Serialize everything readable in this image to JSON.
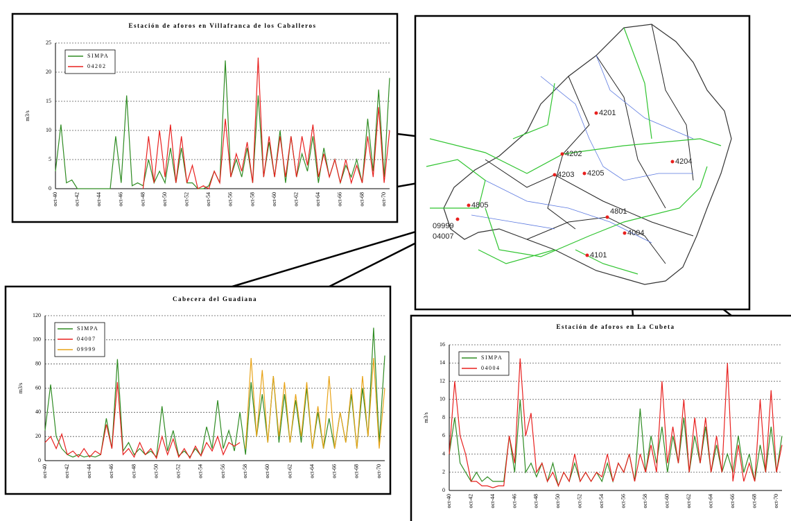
{
  "chart_data": [
    {
      "type": "line",
      "title": "Estación de aforos en Villafranca de los Caballeros",
      "y_label": "m3/s",
      "categories": [
        "oct-40",
        null,
        null,
        null,
        "oct-42",
        null,
        null,
        null,
        "oct-44",
        null,
        null,
        null,
        "oct-46",
        null,
        null,
        null,
        "oct-48",
        null,
        null,
        null,
        "oct-50",
        null,
        null,
        null,
        "oct-52",
        null,
        null,
        null,
        "oct-54",
        null,
        null,
        null,
        "oct-56",
        null,
        null,
        null,
        "oct-58",
        null,
        null,
        null,
        "oct-60",
        null,
        null,
        null,
        "oct-62",
        null,
        null,
        null,
        "oct-64",
        null,
        null,
        null,
        "oct-66",
        null,
        null,
        null,
        "oct-68",
        null,
        null,
        null,
        "oct-70",
        null
      ],
      "ylim": [
        0,
        25
      ],
      "yticks": [
        0,
        5,
        10,
        15,
        20,
        25
      ],
      "grid": true,
      "series": [
        {
          "name": "SIMPA",
          "color": "#2e8b22",
          "values": [
            3,
            11,
            1,
            1.5,
            0,
            0,
            0,
            0,
            0,
            0,
            0,
            9,
            1,
            16,
            0.5,
            1,
            0.5,
            5,
            1,
            3,
            1,
            7,
            1,
            7,
            1,
            1,
            0,
            0,
            0.5,
            3,
            1,
            22,
            2,
            5,
            2,
            7,
            1,
            16,
            2,
            8,
            2,
            10,
            1,
            9,
            2,
            6,
            3,
            9,
            1,
            7,
            2,
            5,
            1,
            4,
            2,
            5,
            1,
            12,
            3,
            17,
            2,
            19
          ]
        },
        {
          "name": "04202",
          "color": "#e8201e",
          "values": [
            null,
            null,
            null,
            null,
            null,
            null,
            null,
            null,
            null,
            null,
            null,
            null,
            null,
            null,
            null,
            null,
            0,
            9,
            1,
            10,
            2,
            11,
            1,
            9,
            1,
            4,
            0,
            0.5,
            0,
            3,
            1,
            12,
            2,
            6,
            3,
            8,
            1,
            22.5,
            2,
            9,
            2,
            9,
            2,
            9,
            2,
            9,
            4,
            11,
            2,
            6,
            2,
            5,
            1,
            5,
            1,
            4,
            1,
            9,
            2,
            14,
            1,
            10
          ]
        }
      ]
    },
    {
      "type": "line",
      "title": "Cabecera del Guadiana",
      "y_label": "m3/s",
      "categories": [
        "oct-40",
        null,
        null,
        null,
        "oct-42",
        null,
        null,
        null,
        "oct-44",
        null,
        null,
        null,
        "oct-46",
        null,
        null,
        null,
        "oct-48",
        null,
        null,
        null,
        "oct-50",
        null,
        null,
        null,
        "oct-52",
        null,
        null,
        null,
        "oct-54",
        null,
        null,
        null,
        "oct-56",
        null,
        null,
        null,
        "oct-58",
        null,
        null,
        null,
        "oct-60",
        null,
        null,
        null,
        "oct-62",
        null,
        null,
        null,
        "oct-64",
        null,
        null,
        null,
        "oct-66",
        null,
        null,
        null,
        "oct-68",
        null,
        null,
        null,
        "oct-70",
        null
      ],
      "ylim": [
        0,
        120
      ],
      "yticks": [
        0,
        20,
        40,
        60,
        80,
        100,
        120
      ],
      "grid": true,
      "series": [
        {
          "name": "SIMPA",
          "color": "#2e8b22",
          "values": [
            25,
            63,
            20,
            10,
            5,
            3,
            5,
            3,
            4,
            3,
            5,
            35,
            10,
            84,
            8,
            15,
            5,
            10,
            5,
            8,
            3,
            45,
            8,
            25,
            4,
            8,
            3,
            10,
            4,
            28,
            10,
            50,
            10,
            25,
            8,
            40,
            5,
            65,
            20,
            55,
            15,
            70,
            15,
            55,
            15,
            50,
            15,
            60,
            10,
            40,
            10,
            35,
            10,
            40,
            15,
            55,
            10,
            60,
            20,
            110,
            15,
            87
          ]
        },
        {
          "name": "04007",
          "color": "#e8201e",
          "values": [
            15,
            20,
            10,
            22,
            5,
            8,
            3,
            10,
            3,
            8,
            5,
            30,
            10,
            65,
            5,
            10,
            3,
            15,
            5,
            10,
            2,
            20,
            5,
            18,
            3,
            10,
            2,
            12,
            4,
            15,
            8,
            20,
            5,
            15,
            12,
            15,
            null,
            null,
            null,
            null,
            null,
            null,
            null,
            null,
            null,
            null,
            null,
            null,
            null,
            null,
            null,
            null,
            null,
            null,
            null,
            null,
            null,
            null,
            null,
            null,
            null,
            null
          ]
        },
        {
          "name": "09999",
          "color": "#e8a317",
          "values": [
            null,
            null,
            null,
            null,
            null,
            null,
            null,
            null,
            null,
            null,
            null,
            null,
            null,
            null,
            null,
            null,
            null,
            null,
            null,
            null,
            null,
            null,
            null,
            null,
            null,
            null,
            null,
            null,
            null,
            null,
            null,
            null,
            null,
            null,
            null,
            null,
            10,
            85,
            20,
            75,
            15,
            70,
            20,
            65,
            15,
            55,
            20,
            65,
            10,
            45,
            10,
            70,
            10,
            40,
            15,
            60,
            10,
            70,
            20,
            85,
            10,
            60
          ]
        }
      ]
    },
    {
      "type": "line",
      "title": "Estación de aforos en La Cubeta",
      "y_label": "m3/s",
      "categories": [
        "oct-40",
        null,
        null,
        null,
        "oct-42",
        null,
        null,
        null,
        "oct-44",
        null,
        null,
        null,
        "oct-46",
        null,
        null,
        null,
        "oct-48",
        null,
        null,
        null,
        "oct-50",
        null,
        null,
        null,
        "oct-52",
        null,
        null,
        null,
        "oct-54",
        null,
        null,
        null,
        "oct-56",
        null,
        null,
        null,
        "oct-58",
        null,
        null,
        null,
        "oct-60",
        null,
        null,
        null,
        "oct-62",
        null,
        null,
        null,
        "oct-64",
        null,
        null,
        null,
        "oct-66",
        null,
        null,
        null,
        "oct-68",
        null,
        null,
        null,
        "oct-70",
        null
      ],
      "ylim": [
        0,
        16
      ],
      "yticks": [
        0,
        2,
        4,
        6,
        8,
        10,
        12,
        14,
        16
      ],
      "grid": true,
      "series": [
        {
          "name": "SIMPA",
          "color": "#2e8b22",
          "values": [
            4,
            8,
            3,
            2,
            1,
            2,
            1,
            1.5,
            1,
            1,
            1,
            6,
            2,
            10,
            2,
            3,
            1.5,
            3,
            1,
            3,
            0.5,
            2,
            1,
            3,
            1,
            2,
            1,
            2,
            1,
            3,
            1,
            3,
            2,
            4,
            1,
            9,
            2,
            6,
            3,
            7,
            2,
            6,
            3,
            8,
            2,
            6,
            3,
            7,
            2,
            5,
            2,
            4,
            2,
            6,
            2,
            4,
            1,
            5,
            2,
            7,
            2,
            6
          ]
        },
        {
          "name": "04004",
          "color": "#e8201e",
          "values": [
            4,
            12,
            6,
            4,
            1,
            1,
            0.5,
            0.5,
            0.3,
            0.5,
            0.5,
            6,
            3,
            14.5,
            6,
            8.5,
            2,
            3,
            1,
            2,
            0.5,
            2,
            1,
            4,
            1,
            2,
            1,
            2,
            1.5,
            4,
            1,
            3,
            2,
            4,
            1,
            4,
            2,
            5,
            2,
            12,
            3,
            7,
            3,
            10,
            2,
            8,
            3,
            8,
            2,
            6,
            2,
            14,
            1,
            5,
            1,
            3,
            1,
            10,
            2,
            11,
            2,
            5
          ]
        }
      ]
    }
  ],
  "map": {
    "stations": [
      {
        "label": "4201"
      },
      {
        "label": "4202"
      },
      {
        "label": "4203"
      },
      {
        "label": "4205"
      },
      {
        "label": "4204"
      },
      {
        "label": "4805"
      },
      {
        "label": "4801"
      },
      {
        "label": "4004"
      },
      {
        "label": "4101"
      },
      {
        "label": "09999"
      },
      {
        "label": "04007"
      }
    ]
  }
}
